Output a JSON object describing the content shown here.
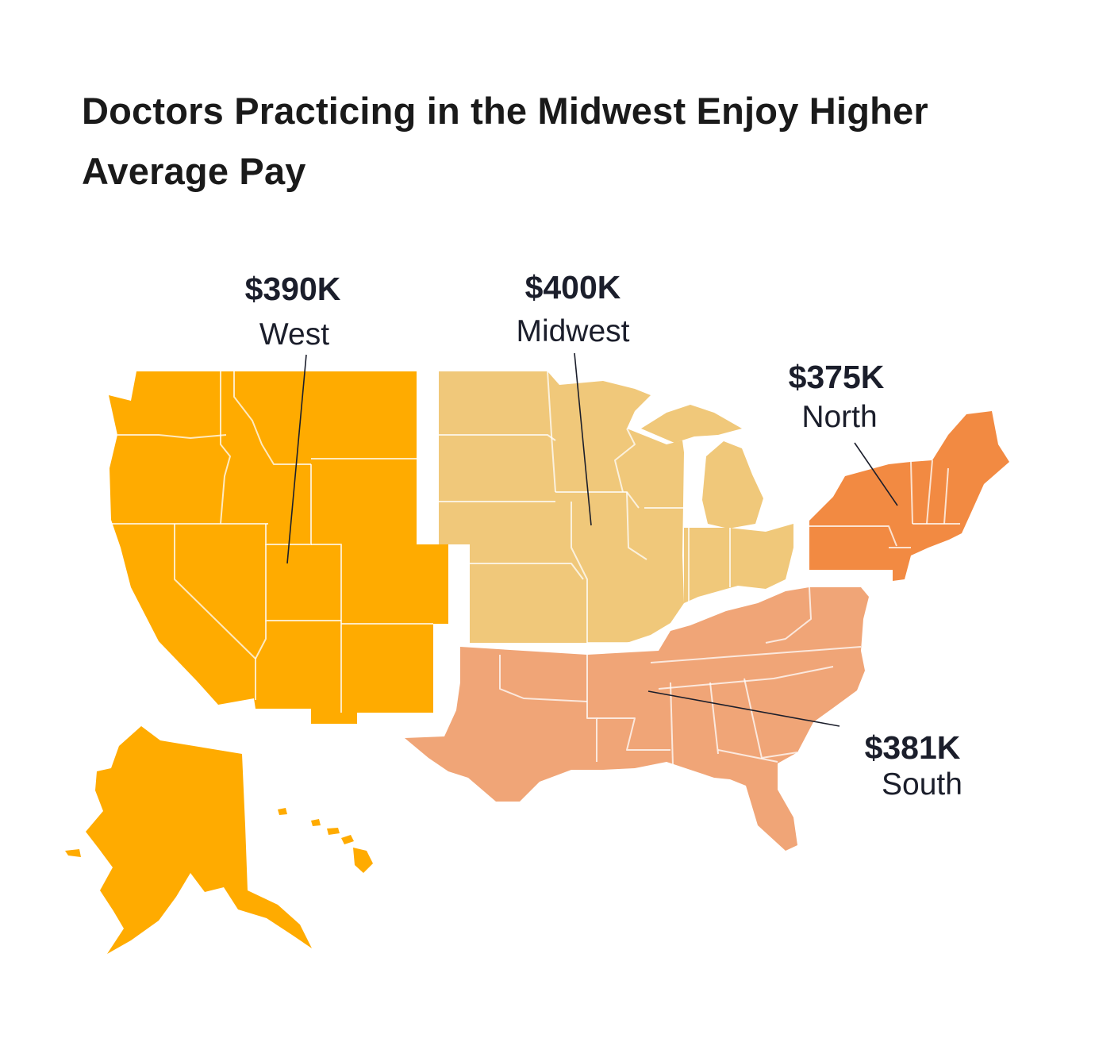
{
  "title": "Doctors Practicing in the Midwest Enjoy Higher Average Pay",
  "colors": {
    "west": "#ffab00",
    "midwest": "#f0c87a",
    "north": "#f28a42",
    "south": "#f0a577",
    "text": "#1b1e2b"
  },
  "regions": {
    "west": {
      "amount": "$390K",
      "name": "West"
    },
    "midwest": {
      "amount": "$400K",
      "name": "Midwest"
    },
    "north": {
      "amount": "$375K",
      "name": "North"
    },
    "south": {
      "amount": "$381K",
      "name": "South"
    }
  }
}
